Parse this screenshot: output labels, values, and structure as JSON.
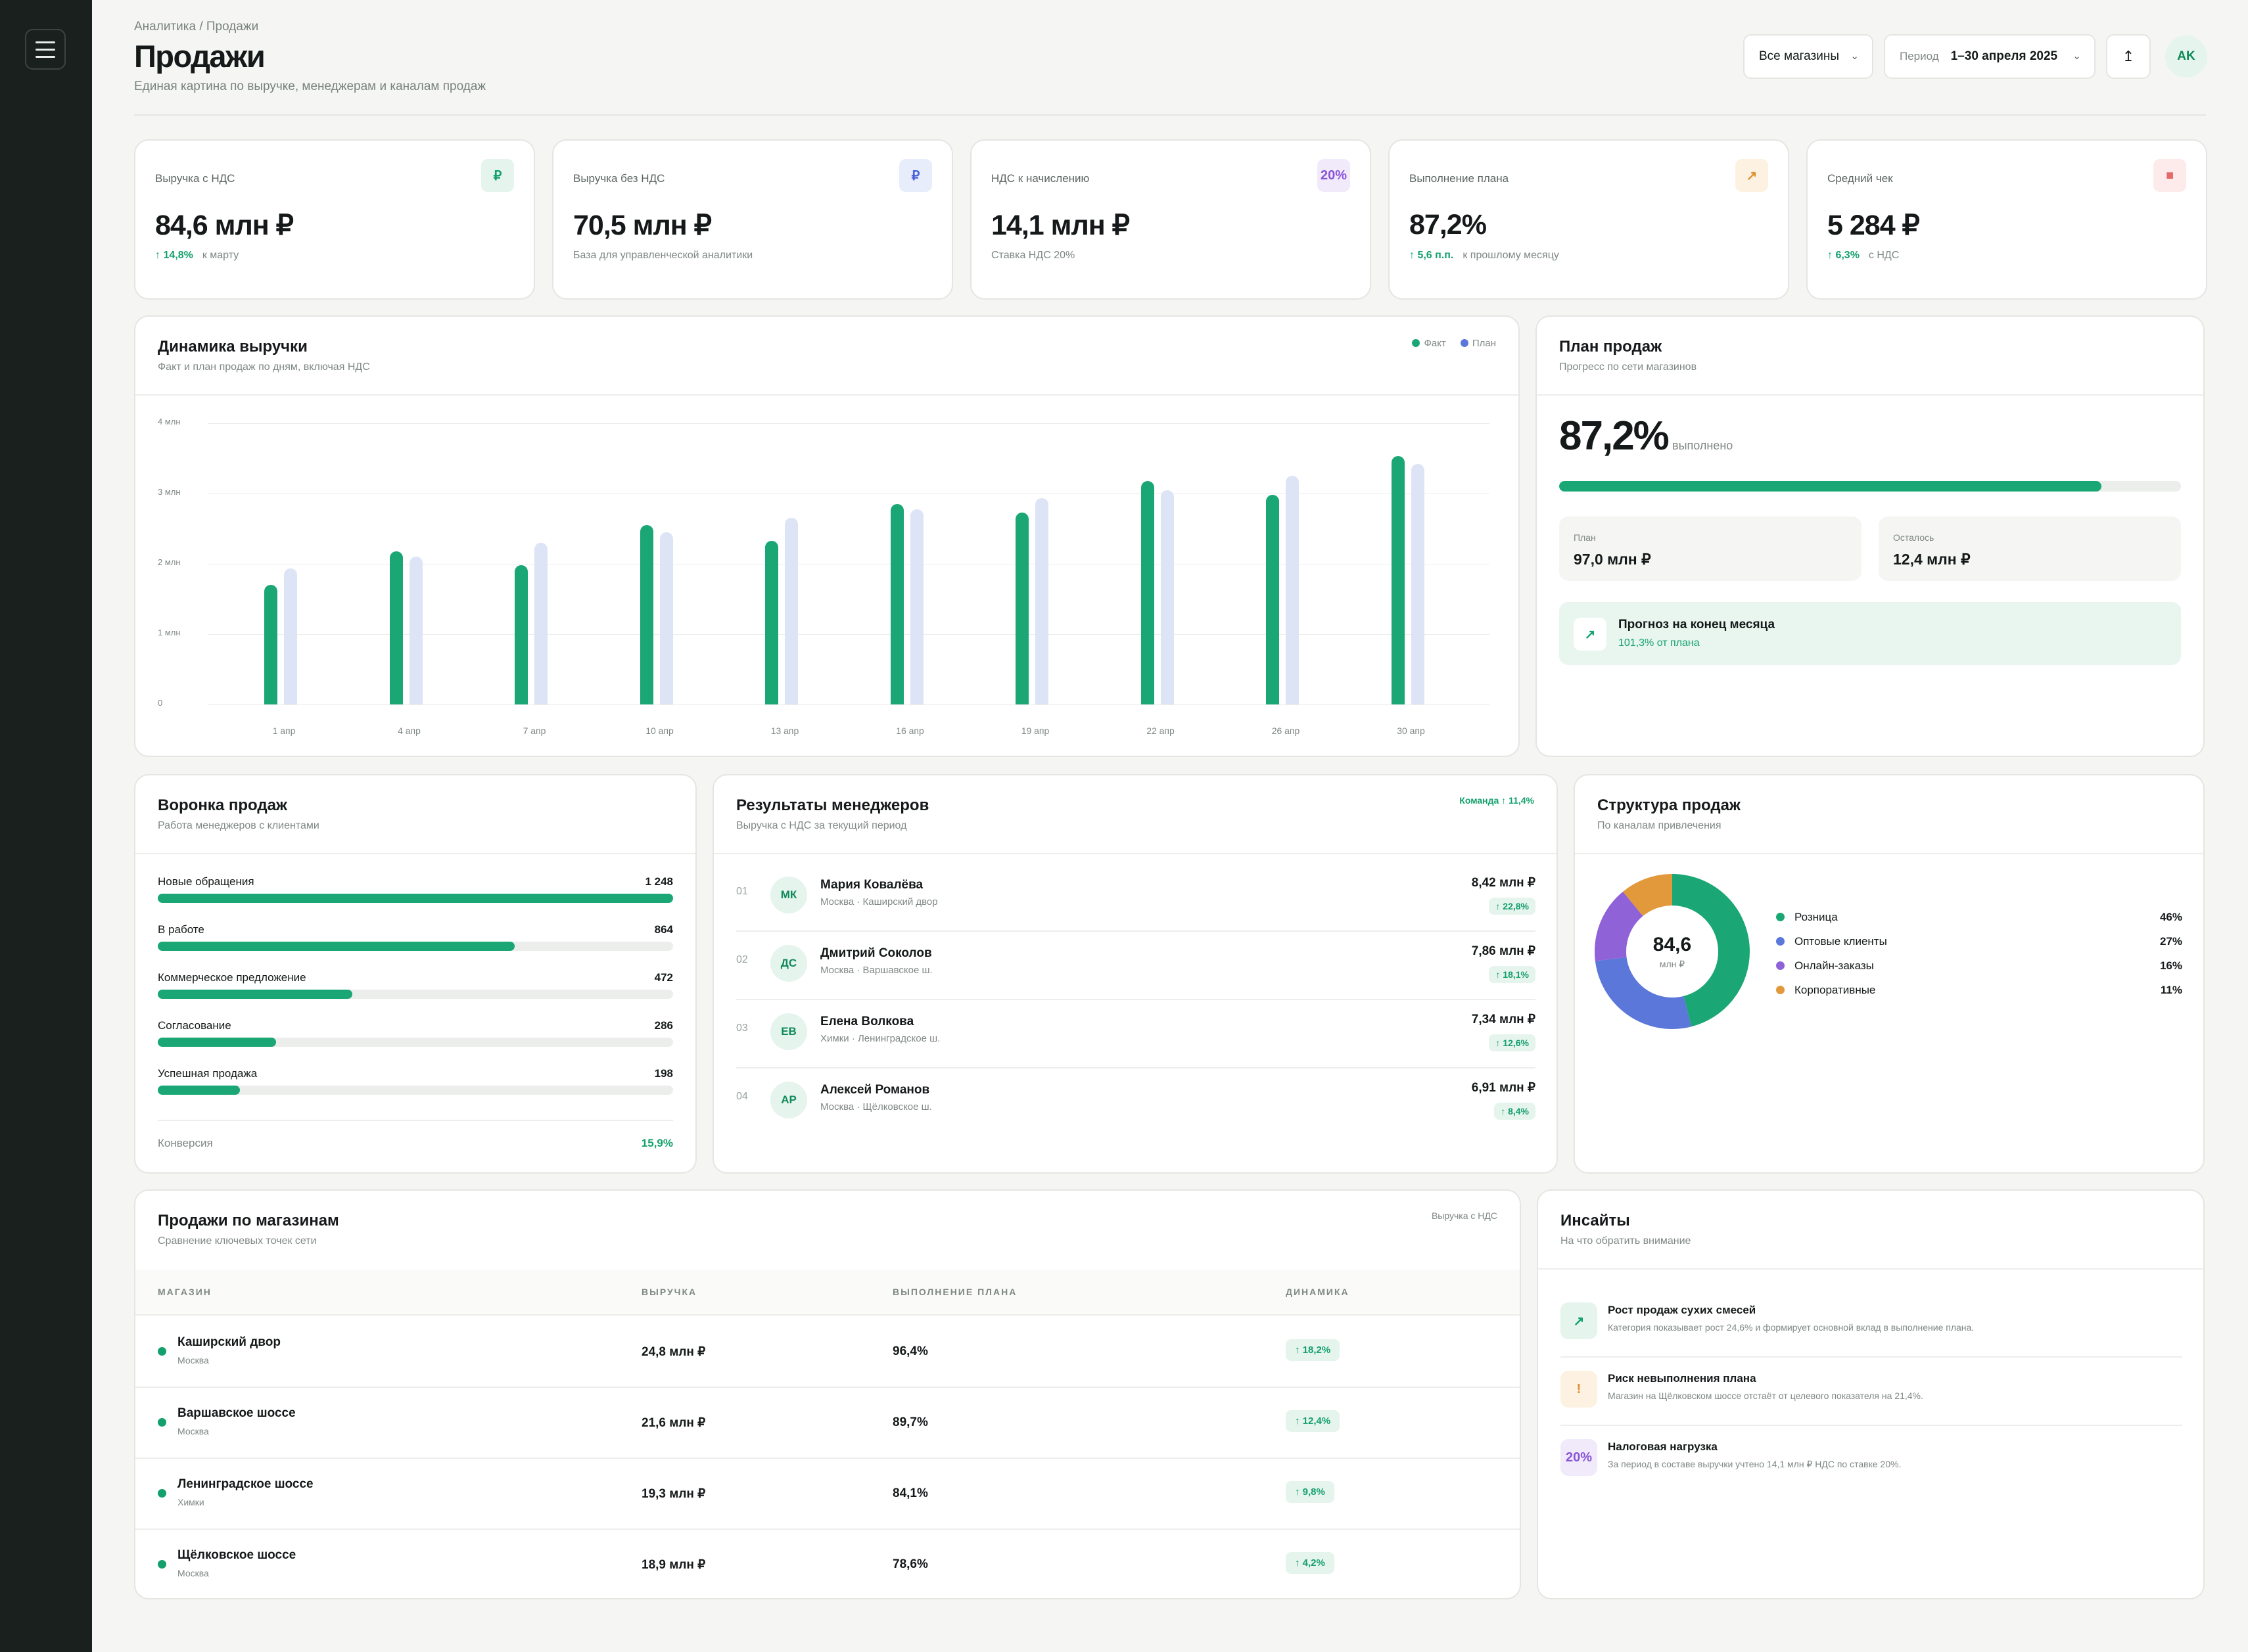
{
  "header": {
    "breadcrumb": "Аналитика / Продажи",
    "title": "Продажи",
    "subtitle": "Единая картина по выручке, менеджерам и каналам продаж",
    "stores_select": "Все магазины",
    "period_label": "Период",
    "period_value": "1–30 апреля 2025",
    "export_icon": "↥",
    "user_initials": "AK"
  },
  "kpis": [
    {
      "label": "Выручка с НДС",
      "value": "84,6 млн ₽",
      "delta": "↑ 14,8%",
      "note": "к марту",
      "icon": "₽",
      "icon_name": "ruble-icon",
      "icon_bg": "#e5f4ec",
      "icon_color": "#13a06c"
    },
    {
      "label": "Выручка без НДС",
      "value": "70,5 млн ₽",
      "delta": "",
      "note": "База для управленческой аналитики",
      "icon": "₽",
      "icon_name": "ruble-icon",
      "icon_bg": "#e8edfb",
      "icon_color": "#4a63d8"
    },
    {
      "label": "НДС к начислению",
      "value": "14,1 млн ₽",
      "delta": "",
      "note": "Ставка НДС 20%",
      "icon": "20%",
      "icon_name": "percent-icon",
      "icon_bg": "#f0eafb",
      "icon_color": "#8a55d6"
    },
    {
      "label": "Выполнение плана",
      "value": "87,2%",
      "delta": "↑ 5,6 п.п.",
      "note": "к прошлому месяцу",
      "icon": "↗",
      "icon_name": "trend-up-icon",
      "icon_bg": "#fdf1e2",
      "icon_color": "#e0902e"
    },
    {
      "label": "Средний чек",
      "value": "5 284 ₽",
      "delta": "↑ 6,3%",
      "note": "с НДС",
      "icon": "■",
      "icon_name": "receipt-icon",
      "icon_bg": "#fdeaea",
      "icon_color": "#e46b6b"
    }
  ],
  "revenue": {
    "title": "Динамика выручки",
    "subtitle": "Факт и план продаж по дням, включая НДС",
    "legend_fact": "Факт",
    "legend_plan": "План"
  },
  "chart_data": {
    "type": "bar",
    "categories": [
      "1 апр",
      "4 апр",
      "7 апр",
      "10 апр",
      "13 апр",
      "16 апр",
      "19 апр",
      "22 апр",
      "26 апр",
      "30 апр"
    ],
    "series": [
      {
        "name": "Факт",
        "values": [
          1.7,
          2.18,
          1.98,
          2.55,
          2.33,
          2.85,
          2.73,
          3.18,
          2.98,
          3.53
        ],
        "color": "#1aa775"
      },
      {
        "name": "План",
        "values": [
          1.93,
          2.1,
          2.3,
          2.45,
          2.65,
          2.78,
          2.93,
          3.05,
          3.25,
          3.42
        ],
        "color": "#dde4f6"
      }
    ],
    "y_ticks": [
      "0",
      "1 млн",
      "2 млн",
      "3 млн",
      "4 млн"
    ],
    "ylim": [
      0,
      4
    ],
    "grid": true,
    "legend": "top-right"
  },
  "plan": {
    "title": "План продаж",
    "subtitle": "Прогресс по сети магазинов",
    "percent": "87,2%",
    "done_label": "выполнено",
    "progress": 0.872,
    "plan_label": "План",
    "plan_value": "97,0 млн ₽",
    "left_label": "Осталось",
    "left_value": "12,4 млн ₽",
    "forecast_title": "Прогноз на конец месяца",
    "forecast_sub": "101,3% от плана"
  },
  "funnel": {
    "title": "Воронка продаж",
    "subtitle": "Работа менеджеров с клиентами",
    "stages": [
      {
        "name": "Новые обращения",
        "count": "1 248",
        "share": 1.0
      },
      {
        "name": "В работе",
        "count": "864",
        "share": 0.692
      },
      {
        "name": "Коммерческое предложение",
        "count": "472",
        "share": 0.378
      },
      {
        "name": "Согласование",
        "count": "286",
        "share": 0.229
      },
      {
        "name": "Успешная продажа",
        "count": "198",
        "share": 0.159
      }
    ],
    "conversion_label": "Конверсия",
    "conversion_value": "15,9%"
  },
  "managers": {
    "title": "Результаты менеджеров",
    "subtitle": "Выручка с НДС за текущий период",
    "team_badge": "Команда ↑ 11,4%",
    "rows": [
      {
        "num": "01",
        "initials": "МК",
        "name": "Мария Ковалёва",
        "location": "Москва · Каширский двор",
        "amount": "8,42 млн ₽",
        "delta": "↑ 22,8%"
      },
      {
        "num": "02",
        "initials": "ДС",
        "name": "Дмитрий Соколов",
        "location": "Москва · Варшавское ш.",
        "amount": "7,86 млн ₽",
        "delta": "↑ 18,1%"
      },
      {
        "num": "03",
        "initials": "ЕВ",
        "name": "Елена Волкова",
        "location": "Химки · Ленинградское ш.",
        "amount": "7,34 млн ₽",
        "delta": "↑ 12,6%"
      },
      {
        "num": "04",
        "initials": "АР",
        "name": "Алексей Романов",
        "location": "Москва · Щёлковское ш.",
        "amount": "6,91 млн ₽",
        "delta": "↑ 8,4%"
      }
    ]
  },
  "structure": {
    "title": "Структура продаж",
    "subtitle": "По каналам привлечения",
    "center_value": "84,6",
    "center_unit": "млн ₽",
    "channels": [
      {
        "name": "Розница",
        "percent": "46%",
        "share": 46,
        "color": "#1aa775"
      },
      {
        "name": "Оптовые клиенты",
        "percent": "27%",
        "share": 27,
        "color": "#5b77d9"
      },
      {
        "name": "Онлайн-заказы",
        "percent": "16%",
        "share": 16,
        "color": "#8f62d8"
      },
      {
        "name": "Корпоративные",
        "percent": "11%",
        "share": 11,
        "color": "#e2993c"
      }
    ]
  },
  "stores": {
    "title": "Продажи по магазинам",
    "subtitle": "Сравнение ключевых точек сети",
    "note": "Выручка с НДС",
    "columns": [
      "МАГАЗИН",
      "ВЫРУЧКА",
      "ВЫПОЛНЕНИЕ ПЛАНА",
      "ДИНАМИКА"
    ],
    "rows": [
      {
        "name": "Каширский двор",
        "city": "Москва",
        "revenue": "24,8 млн ₽",
        "plan": "96,4%",
        "dynamics": "↑ 18,2%"
      },
      {
        "name": "Варшавское шоссе",
        "city": "Москва",
        "revenue": "21,6 млн ₽",
        "plan": "89,7%",
        "dynamics": "↑ 12,4%"
      },
      {
        "name": "Ленинградское шоссе",
        "city": "Химки",
        "revenue": "19,3 млн ₽",
        "plan": "84,1%",
        "dynamics": "↑ 9,8%"
      },
      {
        "name": "Щёлковское шоссе",
        "city": "Москва",
        "revenue": "18,9 млн ₽",
        "plan": "78,6%",
        "dynamics": "↑ 4,2%"
      }
    ]
  },
  "insights": {
    "title": "Инсайты",
    "subtitle": "На что обратить внимание",
    "items": [
      {
        "icon": "↗",
        "icon_name": "trend-up-icon",
        "icon_bg": "#e5f4ec",
        "icon_color": "#13a06c",
        "title": "Рост продаж сухих смесей",
        "text": "Категория показывает рост 24,6% и формирует основной вклад в выполнение плана."
      },
      {
        "icon": "!",
        "icon_name": "warning-icon",
        "icon_bg": "#fdf1e2",
        "icon_color": "#e0902e",
        "title": "Риск невыполнения плана",
        "text": "Магазин на Щёлковском шоссе отстаёт от целевого показателя на 21,4%."
      },
      {
        "icon": "20%",
        "icon_name": "percent-icon",
        "icon_bg": "#f0eafb",
        "icon_color": "#8a55d6",
        "title": "Налоговая нагрузка",
        "text": "За период в составе выручки учтено 14,1 млн ₽ НДС по ставке 20%."
      }
    ]
  }
}
